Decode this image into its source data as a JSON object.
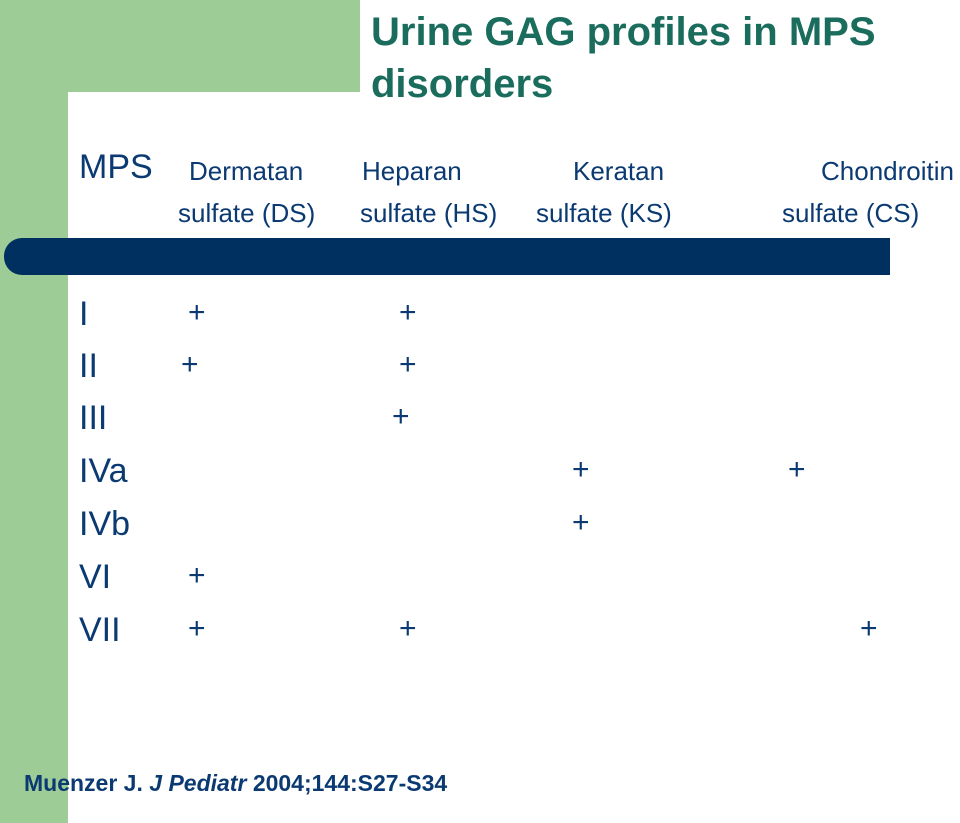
{
  "title": "Urine GAG profiles in MPS disorders",
  "headers": {
    "mps": "MPS",
    "ds_line1": "Dermatan",
    "ds_line2": "sulfate (DS)",
    "hs_line1": "Heparan",
    "hs_line2": "sulfate (HS)",
    "ks_line1": "Keratan",
    "ks_line2": "sulfate (KS)",
    "cs_line1": "Chondroitin",
    "cs_line2": "sulfate (CS)"
  },
  "rows": [
    {
      "label": "I",
      "marks": [
        "+",
        "+",
        "",
        ""
      ]
    },
    {
      "label": "II",
      "marks": [
        "+",
        "+",
        "",
        ""
      ]
    },
    {
      "label": "III",
      "marks": [
        "",
        "+",
        "",
        ""
      ]
    },
    {
      "label": "IVa",
      "marks": [
        "",
        "",
        "+",
        "+"
      ]
    },
    {
      "label": "IVb",
      "marks": [
        "",
        "",
        "+",
        ""
      ]
    },
    {
      "label": "VI",
      "marks": [
        "+",
        "",
        "",
        ""
      ]
    },
    {
      "label": "VII",
      "marks": [
        "+",
        "+",
        "",
        "+"
      ]
    }
  ],
  "citation": {
    "author": "Muenzer J.",
    "journal": "J Pediatr",
    "ref": "2004;144:S27-S34"
  },
  "colors": {
    "accent_green": "#9dcc96",
    "title": "#1a6d5c",
    "text": "#0b3a73",
    "bar": "#00305f"
  }
}
